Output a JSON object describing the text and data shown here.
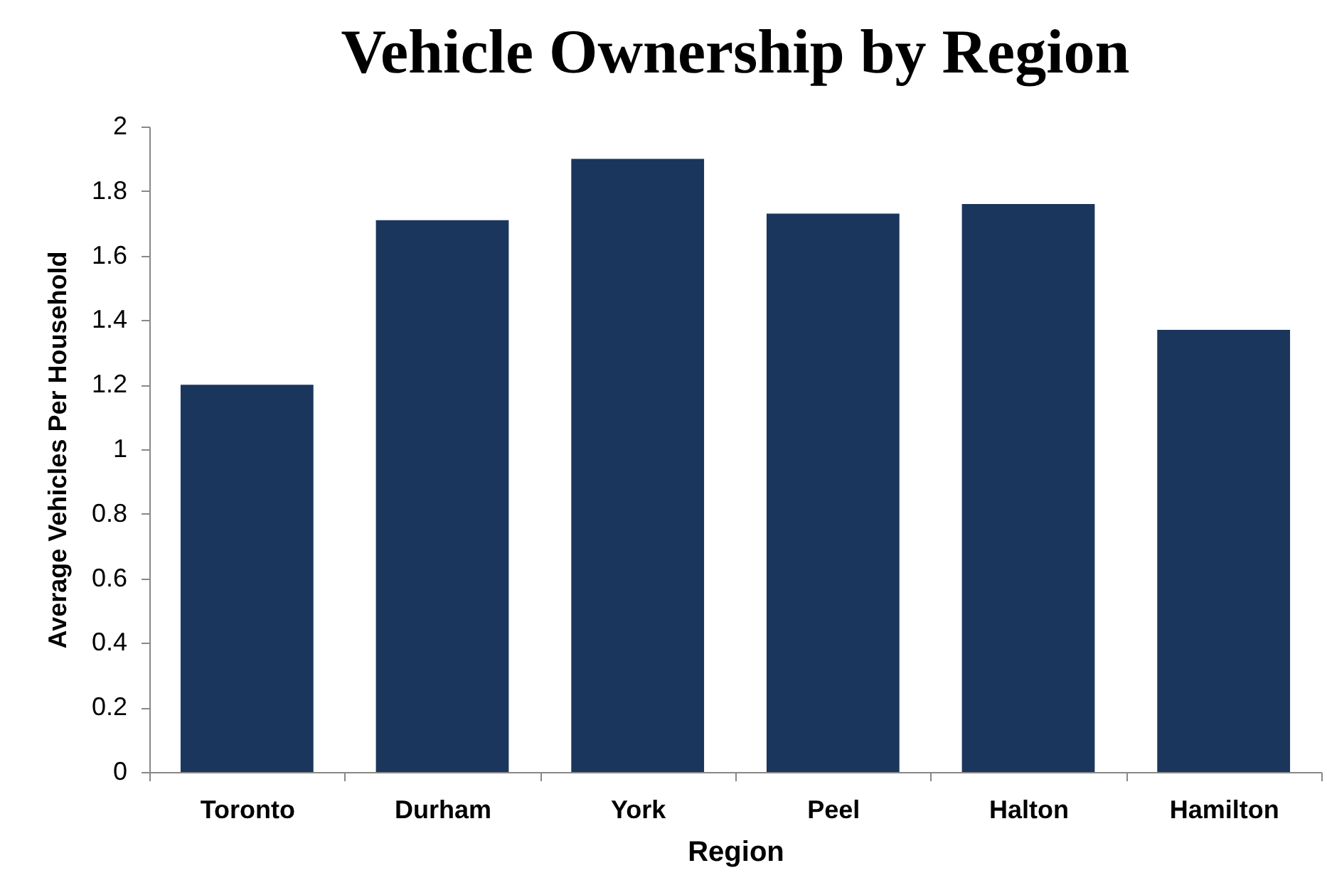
{
  "chart_data": {
    "type": "bar",
    "title": "Vehicle Ownership by Region",
    "xlabel": "Region",
    "ylabel": "Average Vehicles Per Household",
    "categories": [
      "Toronto",
      "Durham",
      "York",
      "Peel",
      "Halton",
      "Hamilton"
    ],
    "values": [
      1.2,
      1.71,
      1.9,
      1.73,
      1.76,
      1.37
    ],
    "color": "#1b365d",
    "ylim": [
      0,
      2
    ],
    "yticks": [
      0,
      0.2,
      0.4,
      0.6,
      0.8,
      1,
      1.2,
      1.4,
      1.6,
      1.8,
      2
    ],
    "grid": false
  }
}
